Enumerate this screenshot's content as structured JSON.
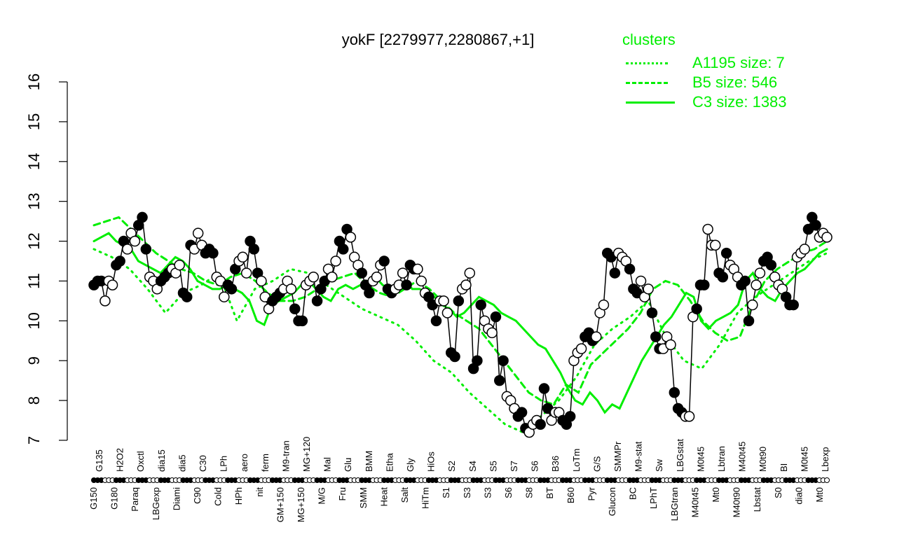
{
  "chart_data": {
    "type": "line",
    "title": "yokF [2279977,2280867,+1]",
    "xlabel": "",
    "ylabel": "",
    "ylim": [
      7,
      16
    ],
    "yticks": [
      7,
      8,
      9,
      10,
      11,
      12,
      13,
      14,
      15,
      16
    ],
    "legend": {
      "title": "clusters",
      "position": "top-right",
      "entries": [
        {
          "label": "A1195 size: 7",
          "style": "dotted"
        },
        {
          "label": "B5 size: 546",
          "style": "dashed"
        },
        {
          "label": "C3 size: 1383",
          "style": "solid"
        }
      ],
      "color": "#00ee00"
    },
    "xtick_labels_top": [
      "G135",
      "H2O2",
      "Oxctl",
      "dia15",
      "dia5",
      "C30",
      "LPh",
      "aero",
      "ferm",
      "M9-tran",
      "MG+120",
      "Mal",
      "Glu",
      "BMM",
      "Etha",
      "Gly",
      "HiOs",
      "S2",
      "S4",
      "S5",
      "S7",
      "S6",
      "B36",
      "LoTm",
      "G/S",
      "SMMPr",
      "M9-stat",
      "Sw",
      "LBGstat",
      "M0t45",
      "Lbtran",
      "M40t45",
      "M0t90",
      "BI",
      "M0t45",
      "Lbexp"
    ],
    "xtick_labels_bottom": [
      "G150",
      "G180",
      "Paraq",
      "LBGexp",
      "Diami",
      "C90",
      "Cold",
      "HPh",
      "nit",
      "GM+150",
      "MG+150",
      "M/G",
      "Fru",
      "SMM",
      "Heat",
      "Salt",
      "HiTm",
      "S1",
      "S3",
      "S3",
      "S6",
      "S8",
      "BT",
      "B60",
      "Pyr",
      "Glucon",
      "BC",
      "LPhT",
      "LBGtran",
      "M40t45",
      "Mt0",
      "M40t90",
      "Lbstat",
      "S0",
      "dia0",
      "Mt0"
    ],
    "series": [
      {
        "name": "observed (yokF)",
        "color": "#000000",
        "y": [
          10.9,
          11.0,
          11.0,
          10.5,
          11.0,
          10.9,
          11.4,
          11.5,
          12.0,
          11.8,
          12.2,
          12.0,
          12.4,
          12.6,
          11.8,
          11.1,
          11.0,
          10.8,
          11.0,
          11.1,
          11.2,
          11.3,
          11.2,
          11.4,
          10.7,
          10.6,
          11.9,
          11.8,
          12.2,
          11.9,
          11.7,
          11.8,
          11.7,
          11.1,
          11.0,
          10.6,
          10.9,
          10.8,
          11.3,
          11.5,
          11.6,
          11.2,
          12.0,
          11.8,
          11.2,
          11.0,
          10.6,
          10.3,
          10.5,
          10.6,
          10.7,
          10.8,
          11.0,
          10.8,
          10.3,
          10.0,
          10.0,
          10.9,
          11.0,
          11.1,
          10.5,
          10.8,
          11.0,
          11.3,
          11.1,
          11.5,
          12.0,
          11.8,
          12.3,
          12.1,
          11.6,
          11.4,
          11.2,
          10.9,
          10.7,
          11.0,
          11.1,
          11.4,
          11.5,
          10.8,
          10.7,
          10.8,
          10.9,
          11.2,
          10.9,
          11.4,
          11.3,
          11.3,
          11.0,
          10.7,
          10.6,
          10.4,
          10.0,
          10.5,
          10.5,
          10.2,
          9.2,
          9.1,
          10.5,
          10.8,
          10.9,
          11.2,
          8.8,
          9.0,
          10.4,
          10.0,
          9.8,
          9.7,
          10.1,
          8.5,
          9.0,
          8.1,
          8.0,
          7.8,
          7.6,
          7.7,
          7.3,
          7.2,
          7.4,
          7.5,
          7.4,
          8.3,
          7.8,
          7.5,
          7.7,
          7.7,
          7.5,
          7.4,
          7.6,
          9.0,
          9.2,
          9.3,
          9.6,
          9.7,
          9.5,
          9.6,
          10.2,
          10.4,
          11.7,
          11.6,
          11.2,
          11.7,
          11.6,
          11.5,
          11.3,
          10.8,
          10.7,
          11.0,
          10.6,
          10.8,
          10.2,
          9.6,
          9.3,
          9.3,
          9.6,
          9.4,
          8.2,
          7.8,
          7.7,
          7.6,
          7.6,
          10.1,
          10.3,
          10.9,
          10.9,
          12.3,
          11.9,
          11.9,
          11.2,
          11.1,
          11.7,
          11.4,
          11.3,
          11.1,
          10.9,
          11.0,
          10.0,
          10.4,
          10.9,
          11.2,
          11.5,
          11.6,
          11.4,
          11.1,
          10.9,
          10.8,
          10.6,
          10.4,
          10.4,
          11.6,
          11.7,
          11.8,
          12.3,
          12.6,
          12.4,
          12.1,
          12.2,
          12.1
        ],
        "filled_markers": "alternating black/white circles per condition"
      },
      {
        "name": "C3 size: 1383 (solid)",
        "color": "#00ee00",
        "y": [
          12.0,
          12.1,
          12.2,
          12.0,
          11.9,
          11.8,
          11.5,
          11.4,
          11.3,
          11.2,
          11.4,
          11.6,
          11.5,
          11.3,
          11.0,
          10.9,
          10.8,
          10.8,
          10.9,
          10.8,
          10.7,
          10.5,
          10.0,
          9.9,
          10.4,
          10.5,
          10.6,
          10.7,
          10.9,
          11.0,
          10.8,
          10.6,
          10.5,
          10.8,
          10.9,
          10.8,
          10.9,
          11.0,
          11.1,
          10.9,
          10.8,
          10.9,
          11.0,
          10.8,
          10.8,
          10.7,
          10.6,
          10.4,
          10.3,
          10.1,
          10.2,
          10.4,
          10.6,
          10.5,
          10.4,
          10.2,
          10.1,
          10.0,
          9.8,
          9.6,
          9.4,
          9.3,
          9.0,
          8.7,
          8.3,
          8.0,
          7.9,
          8.2,
          8.0,
          7.7,
          7.9,
          7.8,
          8.2,
          8.6,
          9.0,
          9.3,
          9.6,
          9.9,
          10.1,
          10.4,
          10.7,
          10.6,
          10.0,
          9.8,
          10.0,
          10.1,
          10.2,
          10.4,
          11.0,
          11.2,
          10.8,
          10.6,
          10.5,
          10.8,
          11.0,
          11.2,
          11.3,
          11.5,
          11.7,
          11.8
        ]
      },
      {
        "name": "B5 size: 546 (dashed)",
        "color": "#00ee00",
        "y": [
          12.4,
          12.5,
          12.6,
          12.3,
          12.0,
          11.7,
          11.5,
          11.3,
          11.2,
          11.0,
          10.9,
          11.1,
          11.2,
          11.0,
          10.7,
          10.5,
          10.5,
          10.6,
          10.8,
          11.0,
          11.1,
          11.2,
          10.9,
          10.7,
          10.6,
          10.8,
          11.0,
          10.8,
          10.5,
          10.2,
          10.0,
          9.8,
          9.4,
          9.0,
          8.6,
          8.2,
          8.0,
          7.9,
          8.4,
          8.2,
          8.9,
          9.2,
          9.5,
          9.8,
          10.2,
          10.8,
          11.0,
          10.9,
          10.5,
          10.0,
          9.7,
          9.5,
          9.6,
          10.4,
          11.0,
          11.3,
          11.5,
          11.7,
          11.8,
          12.0
        ]
      },
      {
        "name": "A1195 size: 7 (dotted)",
        "color": "#00ee00",
        "y": [
          11.8,
          11.6,
          11.3,
          10.8,
          10.2,
          10.7,
          10.9,
          11.2,
          10.0,
          10.8,
          11.0,
          11.3,
          11.2,
          10.9,
          10.6,
          10.3,
          10.1,
          9.9,
          9.5,
          9.0,
          8.7,
          8.2,
          7.8,
          7.4,
          7.2,
          7.6,
          8.0,
          8.6,
          9.4,
          9.8,
          10.1,
          10.5,
          9.6,
          9.0,
          8.8,
          9.4,
          10.2,
          10.6,
          10.9,
          11.2,
          11.5,
          11.7
        ]
      }
    ]
  }
}
